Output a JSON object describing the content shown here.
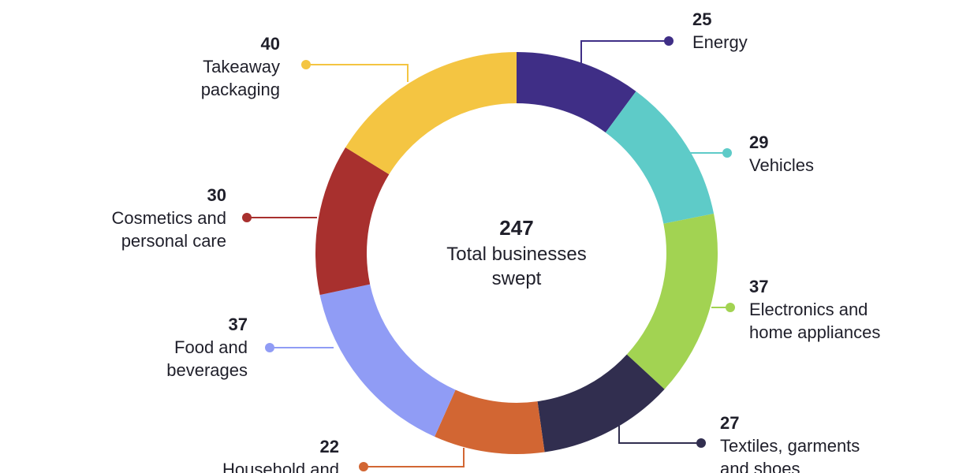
{
  "chart_data": {
    "type": "pie",
    "variant": "donut",
    "center": {
      "value": "247",
      "label_lines": [
        "Total businesses",
        "swept"
      ]
    },
    "slices": [
      {
        "id": "energy",
        "label_lines": [
          "Energy"
        ],
        "value": 25,
        "color": "#3f2e86"
      },
      {
        "id": "vehicles",
        "label_lines": [
          "Vehicles"
        ],
        "value": 29,
        "color": "#5ecbc8"
      },
      {
        "id": "electronics",
        "label_lines": [
          "Electronics and",
          "home appliances"
        ],
        "value": 37,
        "color": "#a2d352"
      },
      {
        "id": "textiles",
        "label_lines": [
          "Textiles, garments",
          "and shoes"
        ],
        "value": 27,
        "color": "#312e4f"
      },
      {
        "id": "household",
        "label_lines": [
          "Household and"
        ],
        "value": 22,
        "color": "#d26633"
      },
      {
        "id": "food",
        "label_lines": [
          "Food and",
          "beverages"
        ],
        "value": 37,
        "color": "#909cf5"
      },
      {
        "id": "cosmetics",
        "label_lines": [
          "Cosmetics and",
          "personal care"
        ],
        "value": 30,
        "color": "#a8302e"
      },
      {
        "id": "takeaway",
        "label_lines": [
          "Takeaway",
          "packaging"
        ],
        "value": 40,
        "color": "#f4c542"
      }
    ]
  }
}
